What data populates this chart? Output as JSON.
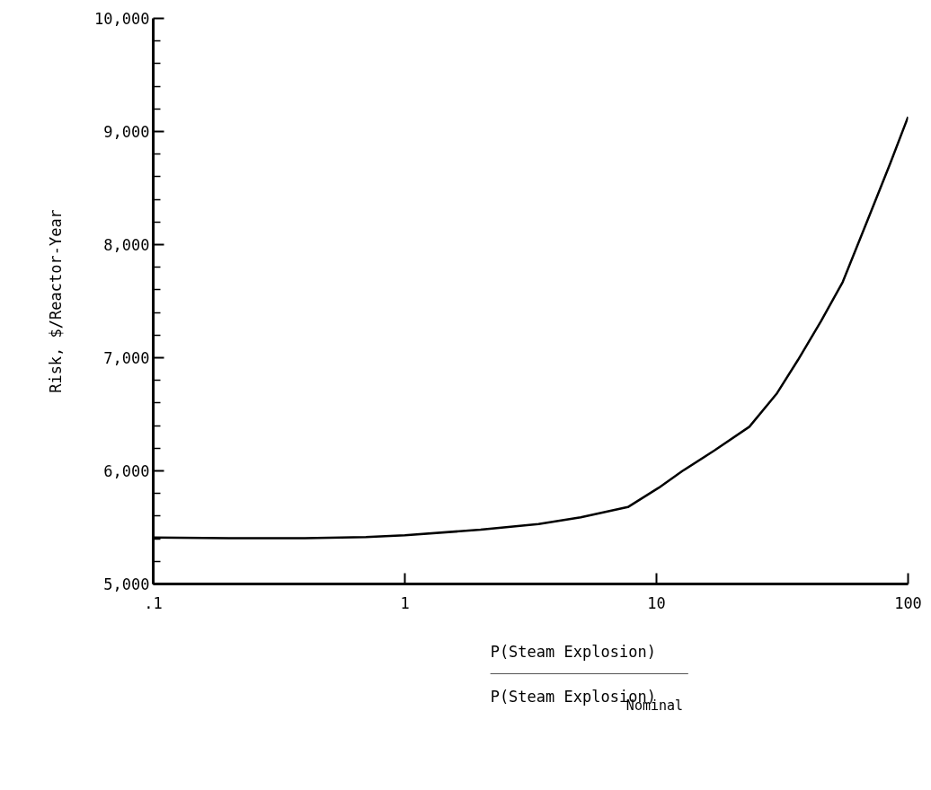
{
  "chart_data": {
    "type": "line",
    "ylabel": "Risk, $/Reactor-Year",
    "xlabel": "P(Steam Explosion)\nP(Steam Explosion)$_{Nominal}$",
    "log": "x",
    "grid": false,
    "marker": "none",
    "line_style": "solid",
    "x": [
      0.1,
      0.2,
      0.4,
      0.7,
      1,
      2,
      3.4,
      5,
      7.7,
      10.2,
      12.7,
      17,
      23.4,
      30,
      36.5,
      45,
      55,
      70,
      85,
      100
    ],
    "series": [
      {
        "color": "#000000",
        "values": [
          5410,
          5405,
          5405,
          5415,
          5430,
          5480,
          5530,
          5590,
          5680,
          5850,
          6000,
          6180,
          6390,
          6680,
          6980,
          7320,
          7670,
          8250,
          8720,
          9130
        ]
      }
    ],
    "xlim": [
      0.1,
      100
    ],
    "xticks": [
      {
        "value": 0.1,
        "label": ".1"
      },
      1,
      10,
      100
    ],
    "ylim": [
      5000,
      10000
    ],
    "yticks": [
      {
        "value": 5000,
        "label": "5,000"
      },
      {
        "value": 5200,
        "label": null
      },
      {
        "value": 5400,
        "label": null
      },
      {
        "value": 5600,
        "label": null
      },
      {
        "value": 5800,
        "label": null
      },
      {
        "value": 6000,
        "label": "6,000"
      },
      {
        "value": 6200,
        "label": null
      },
      {
        "value": 6400,
        "label": null
      },
      {
        "value": 6600,
        "label": null
      },
      {
        "value": 6800,
        "label": null
      },
      {
        "value": 7000,
        "label": "7,000"
      },
      {
        "value": 7200,
        "label": null
      },
      {
        "value": 7400,
        "label": null
      },
      {
        "value": 7600,
        "label": null
      },
      {
        "value": 7800,
        "label": null
      },
      {
        "value": 8000,
        "label": "8,000"
      },
      {
        "value": 8200,
        "label": null
      },
      {
        "value": 8400,
        "label": null
      },
      {
        "value": 8600,
        "label": null
      },
      {
        "value": 8800,
        "label": null
      },
      {
        "value": 9000,
        "label": "9,000"
      },
      {
        "value": 9200,
        "label": null
      },
      {
        "value": 9400,
        "label": null
      },
      {
        "value": 9600,
        "label": null
      },
      {
        "value": 9800,
        "label": null
      },
      {
        "value": 10000,
        "label": "10,000"
      }
    ]
  }
}
